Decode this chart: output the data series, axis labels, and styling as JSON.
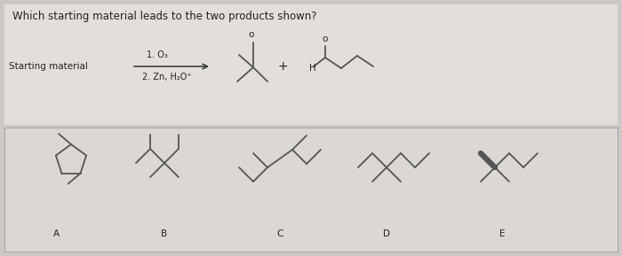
{
  "title": "Which starting material leads to the two products shown?",
  "reaction_label1": "1. O₃",
  "reaction_label2": "2. Zn, H₂O⁺",
  "starting_material_label": "Starting material",
  "plus_sign": "+",
  "H_label": "H",
  "O_label": "o",
  "answer_labels": [
    "A",
    "B",
    "C",
    "D",
    "E"
  ],
  "line_color": "#555555",
  "text_color": "#222222",
  "bg_top": "#e8e5e2",
  "bg_box": "#e0ddd9",
  "box_border": "#999999",
  "figsize": [
    7.0,
    2.89
  ],
  "dpi": 100
}
